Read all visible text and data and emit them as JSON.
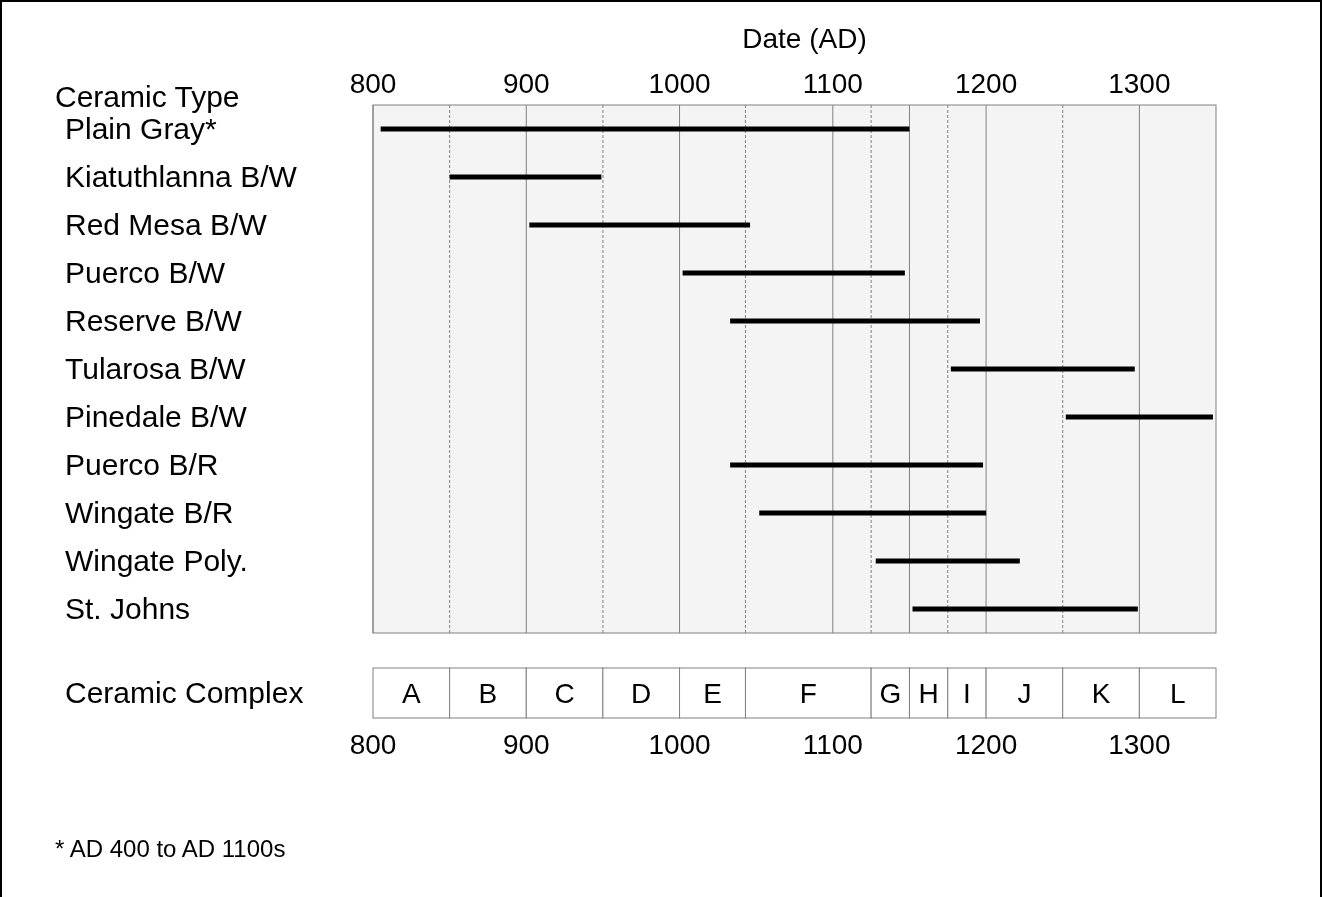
{
  "chart_data": {
    "type": "bar",
    "orientation": "horizontal",
    "x2label": "Date (AD)",
    "ylabel": "Ceramic Type",
    "categories": [
      "Plain Gray*",
      "Kiatuthlanna B/W",
      "Red Mesa B/W",
      "Puerco B/W",
      "Reserve B/W",
      "Tularosa B/W",
      "Pinedale B/W",
      "Puerco B/R",
      "Wingate B/R",
      "Wingate Poly.",
      "St. Johns"
    ],
    "base": [
      805,
      850,
      902,
      1002,
      1033,
      1177,
      1252,
      1033,
      1052,
      1128,
      1152
    ],
    "values": [
      345,
      99,
      144,
      145,
      163,
      120,
      96,
      165,
      148,
      94,
      147
    ],
    "color": "#000000",
    "xlim": [
      800,
      1350
    ],
    "xticks": [
      800,
      900,
      1000,
      1100,
      1200,
      1300
    ],
    "x2lim": [
      800,
      1350
    ],
    "x2ticks": [
      800,
      900,
      1000,
      1100,
      1200,
      1300
    ],
    "grid": "x",
    "ref_lines": [
      {
        "axis": "x",
        "value": 850,
        "line_style": "dashed",
        "color": "#808080"
      },
      {
        "axis": "x",
        "value": 950,
        "line_style": "dashed",
        "color": "#808080"
      },
      {
        "axis": "x",
        "value": 1043,
        "line_style": "dashed",
        "color": "#808080"
      },
      {
        "axis": "x",
        "value": 1125,
        "line_style": "dashed",
        "color": "#808080"
      },
      {
        "axis": "x",
        "value": 1150,
        "line_style": "solid",
        "color": "#808080"
      },
      {
        "axis": "x",
        "value": 1175,
        "line_style": "dashed",
        "color": "#808080"
      },
      {
        "axis": "x",
        "value": 1250,
        "line_style": "dashed",
        "color": "#808080"
      }
    ],
    "bands": [
      {
        "axis": "x",
        "from": 800,
        "to": 850,
        "label": "A",
        "color": "#f4f4f4"
      },
      {
        "axis": "x",
        "from": 850,
        "to": 900,
        "label": "B",
        "color": "#f4f4f4"
      },
      {
        "axis": "x",
        "from": 900,
        "to": 950,
        "label": "C",
        "color": "#f4f4f4"
      },
      {
        "axis": "x",
        "from": 950,
        "to": 1000,
        "label": "D",
        "color": "#f4f4f4"
      },
      {
        "axis": "x",
        "from": 1000,
        "to": 1043,
        "label": "E",
        "color": "#f4f4f4"
      },
      {
        "axis": "x",
        "from": 1043,
        "to": 1125,
        "label": "F",
        "color": "#f4f4f4"
      },
      {
        "axis": "x",
        "from": 1125,
        "to": 1150,
        "label": "G",
        "color": "#f4f4f4"
      },
      {
        "axis": "x",
        "from": 1150,
        "to": 1175,
        "label": "H",
        "color": "#f4f4f4"
      },
      {
        "axis": "x",
        "from": 1175,
        "to": 1200,
        "label": "I",
        "color": "#f4f4f4"
      },
      {
        "axis": "x",
        "from": 1200,
        "to": 1250,
        "label": "J",
        "color": "#f4f4f4"
      },
      {
        "axis": "x",
        "from": 1250,
        "to": 1300,
        "label": "K",
        "color": "#f4f4f4"
      },
      {
        "axis": "x",
        "from": 1300,
        "to": 1350,
        "label": "L",
        "color": "#f4f4f4"
      }
    ],
    "annotations": [
      "Ceramic Complex",
      "* AD 400 to AD 1100s"
    ]
  }
}
